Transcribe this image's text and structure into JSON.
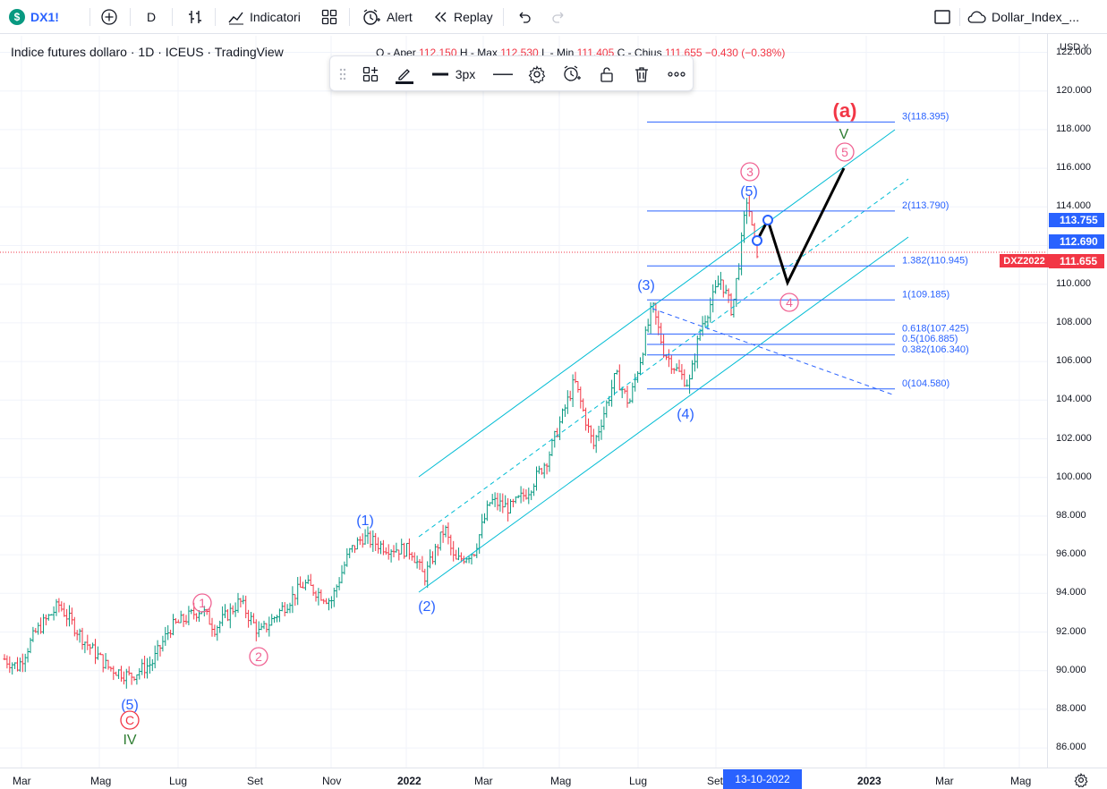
{
  "toolbar": {
    "symbol": "DX1!",
    "symbol_logo": "$",
    "interval": "D",
    "indicators_label": "Indicatori",
    "alert_label": "Alert",
    "replay_label": "Replay",
    "layout_name": "Dollar_Index_...",
    "icons": [
      "add-symbol-icon",
      "bar-style-icon",
      "indicators-icon",
      "templates-icon",
      "alert-clock-icon",
      "replay-icon",
      "undo-icon",
      "redo-icon",
      "fullscreen-icon",
      "cloud-icon"
    ]
  },
  "legend": {
    "title": "Indice futures dollaro · 1D · ICEUS · TradingView",
    "ohlc_prefix": "O - Aper",
    "open": "112.150",
    "high_label": "H - Max",
    "high": "112.530",
    "low_label": "L - Min",
    "low": "111.405",
    "close_label": "C - Chius",
    "close": "111.655",
    "change": "−0.430",
    "change_pct": "(−0.38%)"
  },
  "drawbar": {
    "width_label": "3px",
    "icons": [
      "drag-handle-icon",
      "template-icon",
      "pencil-icon",
      "line-width-icon",
      "line-style-icon",
      "settings-icon",
      "add-alert-icon",
      "lock-icon",
      "trash-icon",
      "more-icon"
    ]
  },
  "price_axis": {
    "currency": "USD",
    "ticks": [
      "122.000",
      "120.000",
      "118.000",
      "116.000",
      "114.000",
      "112.000",
      "110.000",
      "108.000",
      "106.000",
      "104.000",
      "102.000",
      "100.000",
      "98.000",
      "96.000",
      "94.000",
      "92.000",
      "90.000",
      "88.000",
      "86.000"
    ],
    "labels": [
      {
        "text": "113.755",
        "color": "#2962ff"
      },
      {
        "text": "112.690",
        "color": "#2962ff"
      },
      {
        "text": "111.655",
        "color": "#f23645"
      }
    ],
    "series_tag": "DXZ2022"
  },
  "time_axis": {
    "ticks": [
      "Mar",
      "Mag",
      "Lug",
      "Set",
      "Nov",
      "2022",
      "Mar",
      "Mag",
      "Lug",
      "Set",
      "2023",
      "Mar",
      "Mag"
    ],
    "bold": [
      "2022",
      "2023"
    ],
    "crosshair_date": "13-10-2022"
  },
  "fib_levels": [
    {
      "label": "3(118.395)",
      "price": 118.395
    },
    {
      "label": "2(113.790)",
      "price": 113.79
    },
    {
      "label": "1.382(110.945)",
      "price": 110.945
    },
    {
      "label": "1(109.185)",
      "price": 109.185
    },
    {
      "label": "0.618(107.425)",
      "price": 107.425
    },
    {
      "label": "0.5(106.885)",
      "price": 106.885
    },
    {
      "label": "0.382(106.340)",
      "price": 106.34
    },
    {
      "label": "0(104.580)",
      "price": 104.58
    }
  ],
  "wave_labels": {
    "blue": [
      "(1)",
      "(2)",
      "(3)",
      "(4)",
      "(5)",
      "(5)"
    ],
    "pink": [
      "1",
      "2",
      "3",
      "4",
      "5",
      "C"
    ],
    "green": [
      "IV",
      "V"
    ],
    "red": [
      "(a)"
    ]
  },
  "colors": {
    "up": "#089981",
    "down": "#f23645",
    "fib": "#2962ff",
    "channel": "#00bcd4",
    "wave_blue": "#2962ff",
    "wave_pink": "#f06292",
    "wave_green": "#2e7d32",
    "wave_red": "#f23645"
  }
}
